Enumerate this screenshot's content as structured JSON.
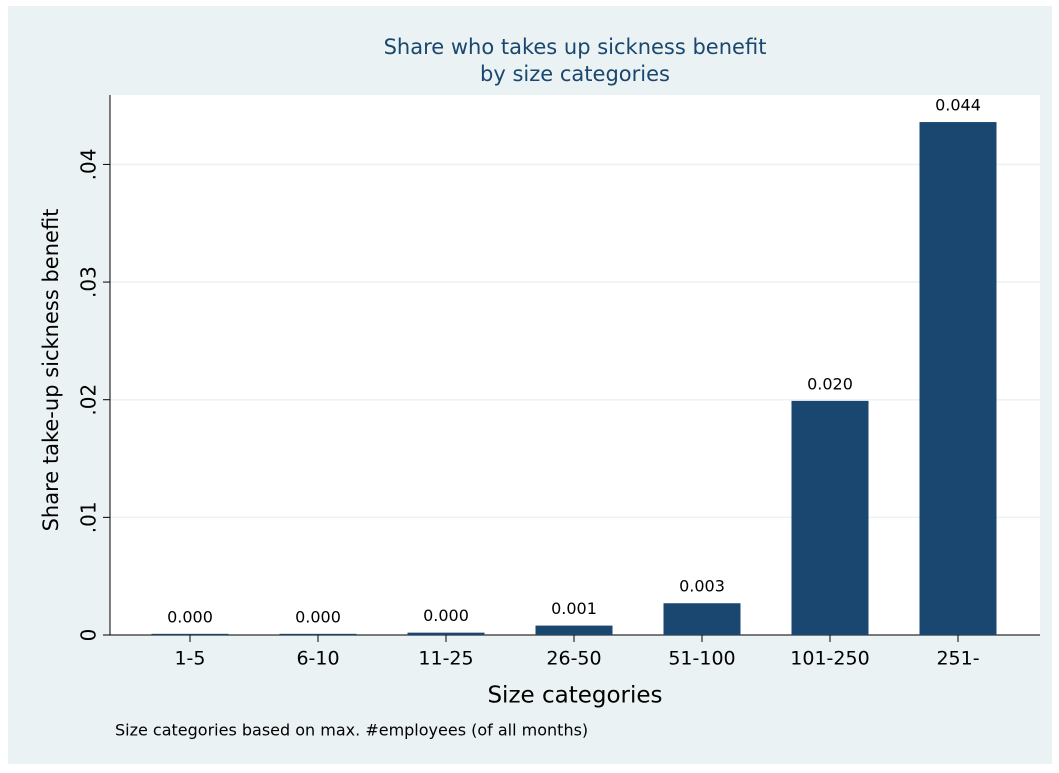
{
  "chart_data": {
    "type": "bar",
    "title": [
      "Share who takes up sickness benefit",
      "by size categories"
    ],
    "x_label": "Size categories",
    "y_label": "Share take-up sickness benefit",
    "note": "Size categories based on max. #employees (of all months)",
    "categories": [
      "1-5",
      "6-10",
      "11-25",
      "26-50",
      "51-100",
      "101-250",
      "251-"
    ],
    "values": [
      0.0001,
      0.0001,
      0.0002,
      0.0008,
      0.0027,
      0.0199,
      0.0436
    ],
    "value_labels": [
      "0.000",
      "0.000",
      "0.000",
      "0.001",
      "0.003",
      "0.020",
      "0.044"
    ],
    "color": "#1a476f",
    "ylim": [
      0,
      0.0459
    ],
    "yticks": [
      0,
      {
        "value": 0.01,
        "label": ".01"
      },
      {
        "value": 0.02,
        "label": ".02"
      },
      {
        "value": 0.03,
        "label": ".03"
      },
      {
        "value": 0.04,
        "label": ".04"
      }
    ],
    "grid": true
  }
}
